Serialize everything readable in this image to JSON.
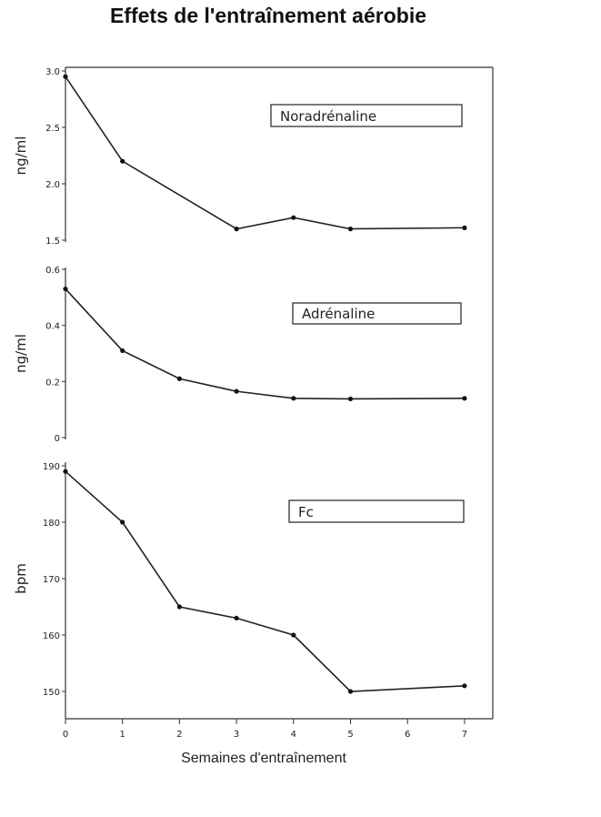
{
  "title": "Effets de l'entraînement aérobie",
  "xlabel": "Semaines d'entraînement",
  "x_ticks": [
    0,
    1,
    2,
    3,
    4,
    5,
    6,
    7
  ],
  "chart_data": [
    {
      "type": "line",
      "legend": "Noradrénaline",
      "ylabel": "ng/ml",
      "ylim": [
        1.5,
        3.0
      ],
      "y_ticks": [
        "1.5",
        "2.0",
        "2.5",
        "3.0"
      ],
      "x": [
        0,
        1,
        3,
        4,
        5,
        7
      ],
      "y": [
        2.95,
        2.2,
        1.6,
        1.7,
        1.6,
        1.61
      ]
    },
    {
      "type": "line",
      "legend": "Adrénaline",
      "ylabel": "ng/ml",
      "ylim": [
        0,
        0.6
      ],
      "y_ticks": [
        "0",
        "0.2",
        "0.4",
        "0.6"
      ],
      "x": [
        0,
        1,
        2,
        3,
        4,
        5,
        7
      ],
      "y": [
        0.53,
        0.31,
        0.21,
        0.165,
        0.14,
        0.138,
        0.14
      ]
    },
    {
      "type": "line",
      "legend": "Fc",
      "ylabel": "bpm",
      "ylim": [
        150,
        190
      ],
      "y_ticks": [
        "150",
        "160",
        "170",
        "180",
        "190"
      ],
      "x": [
        0,
        1,
        2,
        3,
        4,
        5,
        7
      ],
      "y": [
        189,
        180,
        165,
        163,
        160,
        150,
        151
      ]
    }
  ]
}
